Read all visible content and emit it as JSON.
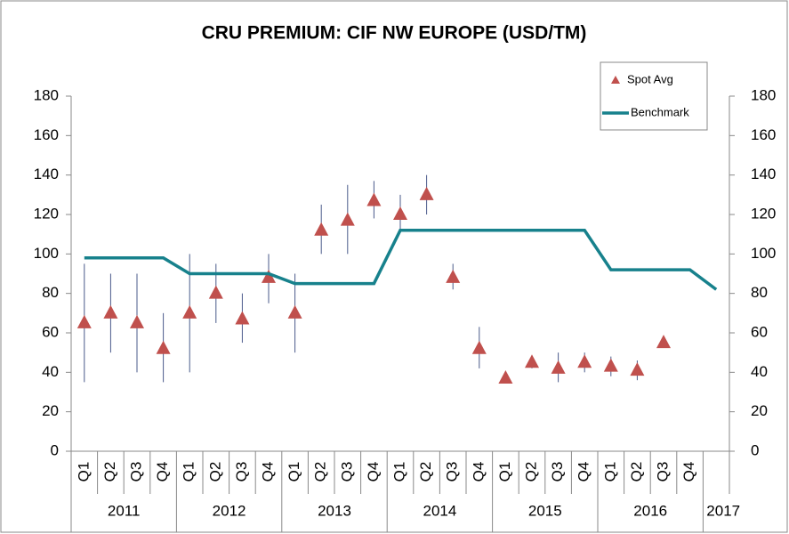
{
  "chart_data": {
    "type": "line",
    "title": "CRU PREMIUM: CIF NW EUROPE (USD/TM)",
    "categories": [
      "Q1",
      "Q2",
      "Q3",
      "Q4",
      "Q1",
      "Q2",
      "Q3",
      "Q4",
      "Q1",
      "Q2",
      "Q3",
      "Q4",
      "Q1",
      "Q2",
      "Q3",
      "Q4",
      "Q1",
      "Q2",
      "Q3",
      "Q4",
      "Q1",
      "Q2",
      "Q3",
      "Q4",
      null
    ],
    "years": [
      "2011",
      "2012",
      "2013",
      "2014",
      "2015",
      "2016",
      "2017"
    ],
    "series": [
      {
        "name": "Spot Avg",
        "color": "#c0504d",
        "marker": "triangle",
        "values": [
          65,
          70,
          65,
          52,
          70,
          80,
          67,
          88,
          70,
          112,
          117,
          127,
          120,
          130,
          88,
          52,
          37,
          45,
          42,
          45,
          43,
          41,
          55,
          null,
          null
        ],
        "low": [
          35,
          50,
          40,
          35,
          40,
          65,
          55,
          75,
          50,
          100,
          100,
          118,
          112,
          120,
          82,
          42,
          35,
          42,
          35,
          40,
          38,
          36,
          null,
          null,
          null
        ],
        "high": [
          95,
          90,
          90,
          70,
          100,
          95,
          80,
          100,
          90,
          125,
          135,
          137,
          130,
          140,
          95,
          63,
          40,
          48,
          50,
          50,
          48,
          46,
          null,
          null,
          null
        ],
        "error_color": "#4a5a8a"
      },
      {
        "name": "Benchmark",
        "color": "#17818c",
        "values": [
          98,
          98,
          98,
          98,
          90,
          90,
          90,
          90,
          85,
          85,
          85,
          85,
          112,
          112,
          112,
          112,
          112,
          112,
          112,
          112,
          92,
          92,
          92,
          92,
          82
        ]
      }
    ],
    "ylim": [
      0,
      180
    ],
    "yticks": [
      0,
      20,
      40,
      60,
      80,
      100,
      120,
      140,
      160,
      180
    ],
    "y2lim": [
      0,
      180
    ],
    "y2ticks": [
      0,
      20,
      40,
      60,
      80,
      100,
      120,
      140,
      160,
      180
    ],
    "legend": "upper right"
  }
}
